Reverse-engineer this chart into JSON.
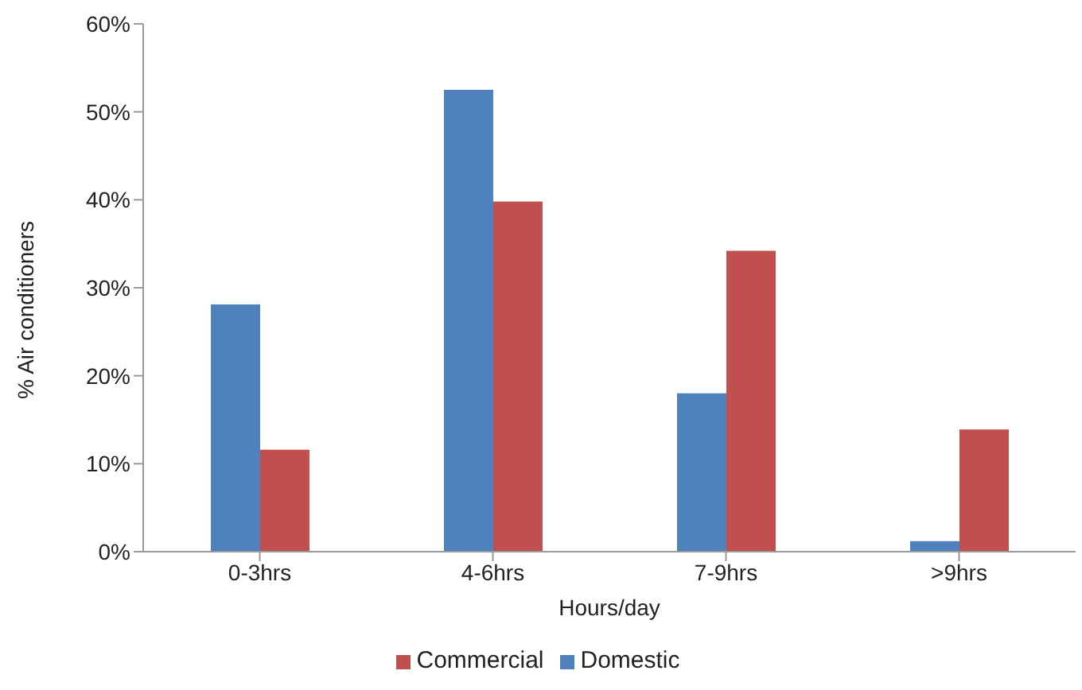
{
  "chart_data": {
    "type": "bar",
    "xlabel": "Hours/day",
    "ylabel": "% Air conditioners",
    "categories": [
      "0-3hrs",
      "4-6hrs",
      "7-9hrs",
      ">9hrs"
    ],
    "series": [
      {
        "name": "Domestic",
        "color": "#4f81bd",
        "values": [
          28.1,
          52.5,
          18.0,
          1.2
        ]
      },
      {
        "name": "Commercial",
        "color": "#c0504d",
        "values": [
          11.6,
          39.8,
          34.2,
          13.9
        ]
      }
    ],
    "ylim": [
      0,
      60
    ],
    "yticks": [
      {
        "value": 0,
        "label": "0%"
      },
      {
        "value": 10,
        "label": "10%"
      },
      {
        "value": 20,
        "label": "20%"
      },
      {
        "value": 30,
        "label": "30%"
      },
      {
        "value": 40,
        "label": "40%"
      },
      {
        "value": 50,
        "label": "50%"
      },
      {
        "value": 60,
        "label": "60%"
      }
    ],
    "grid": false,
    "legend": "bottom"
  }
}
